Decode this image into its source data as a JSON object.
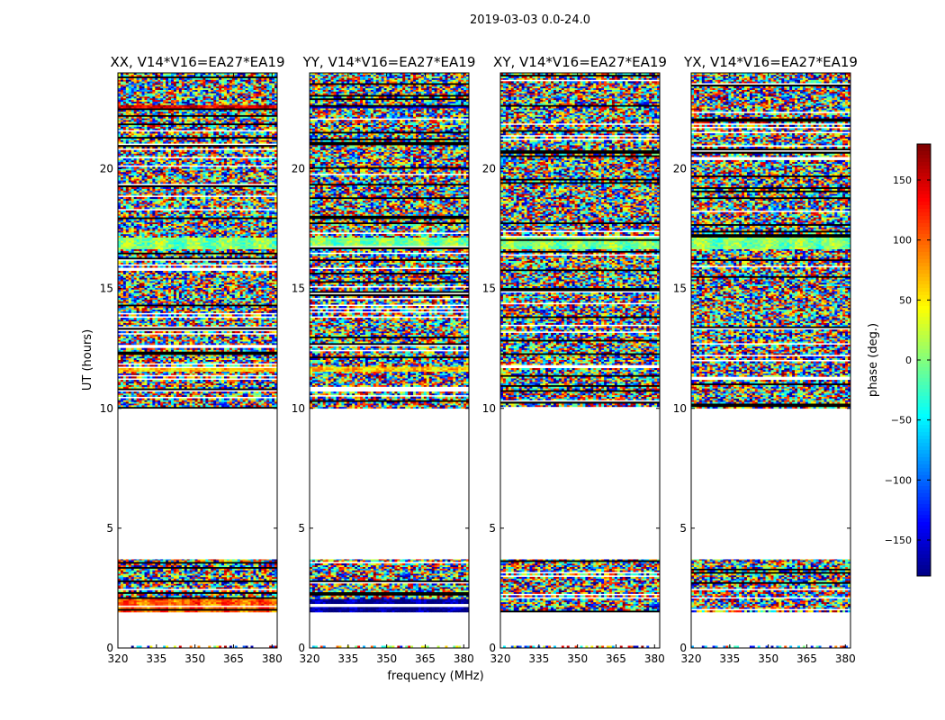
{
  "figure": {
    "suptitle": "2019-03-03 0.0-24.0",
    "xlabel": "frequency (MHz)",
    "ylabel": "UT (hours)"
  },
  "colorbar": {
    "label": "phase (deg.)",
    "range": [
      -180,
      180
    ],
    "ticks": [
      150,
      100,
      50,
      0,
      -50,
      -100,
      -150
    ],
    "tick_labels": [
      "150",
      "100",
      "50",
      "0",
      "−50",
      "−100",
      "−150"
    ],
    "colormap": "jet",
    "colors": [
      "#00007f",
      "#0000ff",
      "#007fff",
      "#00ffff",
      "#7fff7f",
      "#ffff00",
      "#ff7f00",
      "#ff0000",
      "#7f0000"
    ]
  },
  "chart_data": [
    {
      "type": "heatmap",
      "title": "XX, V14*V16=EA27*EA19",
      "xlim": [
        320,
        382
      ],
      "ylim": [
        0,
        24
      ],
      "xticks": [
        320,
        335,
        350,
        365,
        380
      ],
      "yticks": [
        0,
        5,
        10,
        15,
        20
      ],
      "value_range": [
        -180,
        180
      ],
      "data_present_ut": [
        [
          1.5,
          3.7
        ],
        [
          10.0,
          24.0
        ]
      ],
      "sparse_row_ut": [
        0.0,
        0.05
      ],
      "coherent_phase_bands": [
        {
          "ut": [
            1.5,
            2.0
          ],
          "phase": 100
        },
        {
          "ut": [
            11.5,
            11.75
          ],
          "phase": 60
        },
        {
          "ut": [
            16.6,
            17.1
          ],
          "phase": 0
        },
        {
          "ut": [
            22.5,
            22.65
          ],
          "phase": 150
        },
        {
          "ut": [
            19.2,
            19.35
          ],
          "phase": 60
        }
      ]
    },
    {
      "type": "heatmap",
      "title": "YY, V14*V16=EA27*EA19",
      "xlim": [
        320,
        382
      ],
      "ylim": [
        0,
        24
      ],
      "xticks": [
        320,
        335,
        350,
        365,
        380
      ],
      "yticks": [
        0,
        5,
        10,
        15,
        20
      ],
      "value_range": [
        -180,
        180
      ],
      "data_present_ut": [
        [
          1.5,
          3.7
        ],
        [
          10.0,
          24.0
        ]
      ],
      "sparse_row_ut": [
        0.0,
        0.05
      ],
      "coherent_phase_bands": [
        {
          "ut": [
            1.5,
            2.0
          ],
          "phase": -175
        },
        {
          "ut": [
            11.5,
            11.75
          ],
          "phase": 60
        },
        {
          "ut": [
            16.6,
            17.1
          ],
          "phase": 0
        },
        {
          "ut": [
            22.5,
            22.65
          ],
          "phase": -160
        }
      ]
    },
    {
      "type": "heatmap",
      "title": "XY, V14*V16=EA27*EA19",
      "xlim": [
        320,
        382
      ],
      "ylim": [
        0,
        24
      ],
      "xticks": [
        320,
        335,
        350,
        365,
        380
      ],
      "yticks": [
        0,
        5,
        10,
        15,
        20
      ],
      "value_range": [
        -180,
        180
      ],
      "data_present_ut": [
        [
          1.5,
          3.7
        ],
        [
          10.0,
          24.0
        ]
      ],
      "sparse_row_ut": [
        0.0,
        0.05
      ],
      "coherent_phase_bands": [
        {
          "ut": [
            16.6,
            17.1
          ],
          "phase": 0
        }
      ]
    },
    {
      "type": "heatmap",
      "title": "YX, V14*V16=EA27*EA19",
      "xlim": [
        320,
        382
      ],
      "ylim": [
        0,
        24
      ],
      "xticks": [
        320,
        335,
        350,
        365,
        380
      ],
      "yticks": [
        0,
        5,
        10,
        15,
        20
      ],
      "value_range": [
        -180,
        180
      ],
      "data_present_ut": [
        [
          1.5,
          3.7
        ],
        [
          10.0,
          24.0
        ]
      ],
      "sparse_row_ut": [
        0.0,
        0.05
      ],
      "coherent_phase_bands": [
        {
          "ut": [
            16.6,
            17.1
          ],
          "phase": 0
        }
      ]
    }
  ]
}
